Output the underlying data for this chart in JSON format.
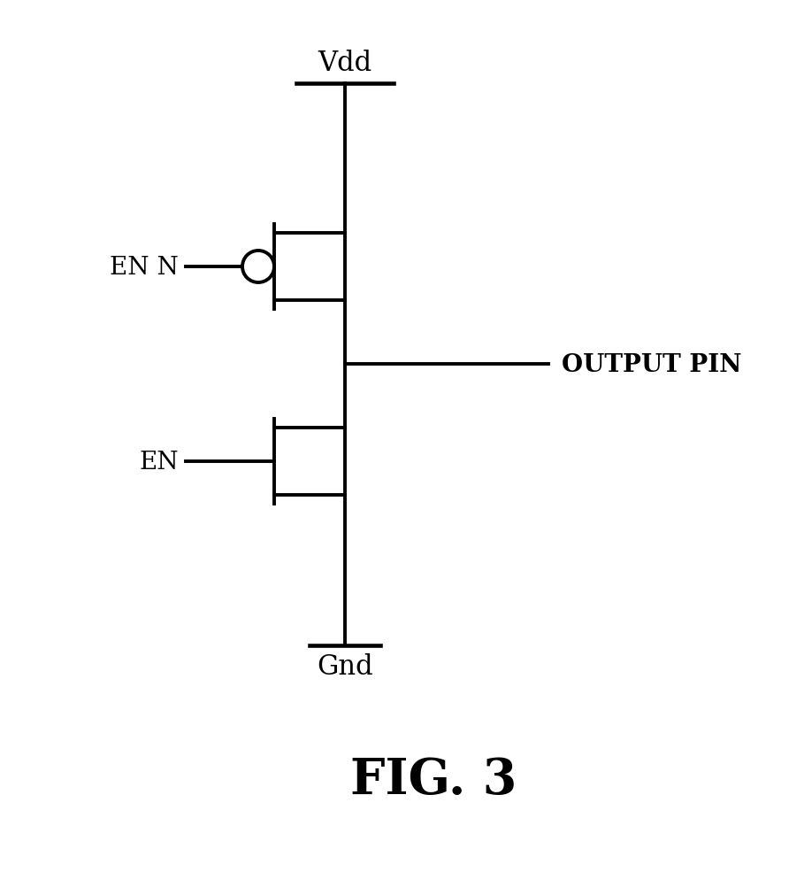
{
  "title": "FIG. 3",
  "vdd_label": "Vdd",
  "gnd_label": "Gnd",
  "en_n_label": "EN N",
  "en_label": "EN",
  "output_label": "OUTPUT PIN",
  "bg_color": "#ffffff",
  "line_color": "#000000",
  "line_width": 2.8,
  "figsize": [
    8.92,
    10.12
  ],
  "dpi": 100
}
